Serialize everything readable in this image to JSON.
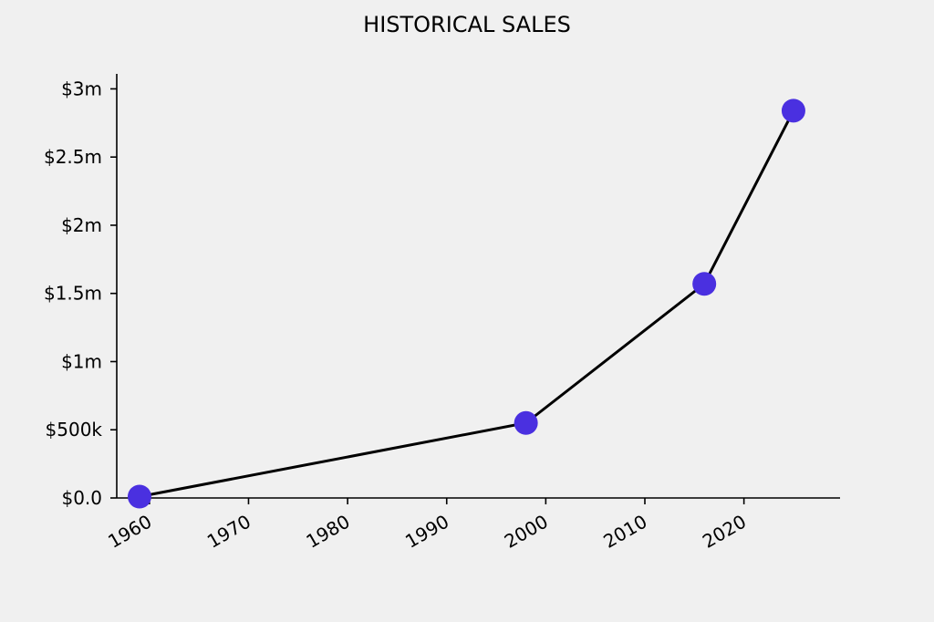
{
  "chart_data": {
    "type": "line",
    "title": "HISTORICAL SALES",
    "xlabel": "",
    "ylabel": "",
    "x_ticks": [
      1960,
      1970,
      1980,
      1990,
      2000,
      2010,
      2020
    ],
    "y_ticks": [
      0,
      500000,
      1000000,
      1500000,
      2000000,
      2500000,
      3000000
    ],
    "y_tick_labels": [
      "$0.0",
      "$500k",
      "$1m",
      "$1.5m",
      "$2m",
      "$2.5m",
      "$3m"
    ],
    "xlim": [
      1956.7,
      2029.7
    ],
    "ylim": [
      0,
      3130000
    ],
    "grid": false,
    "series": [
      {
        "x": [
          1959,
          1998,
          2016,
          2025
        ],
        "y": [
          10000,
          550000,
          1570000,
          2840000
        ],
        "line_color": "#000000",
        "marker_color": "#4a30e0"
      }
    ]
  }
}
